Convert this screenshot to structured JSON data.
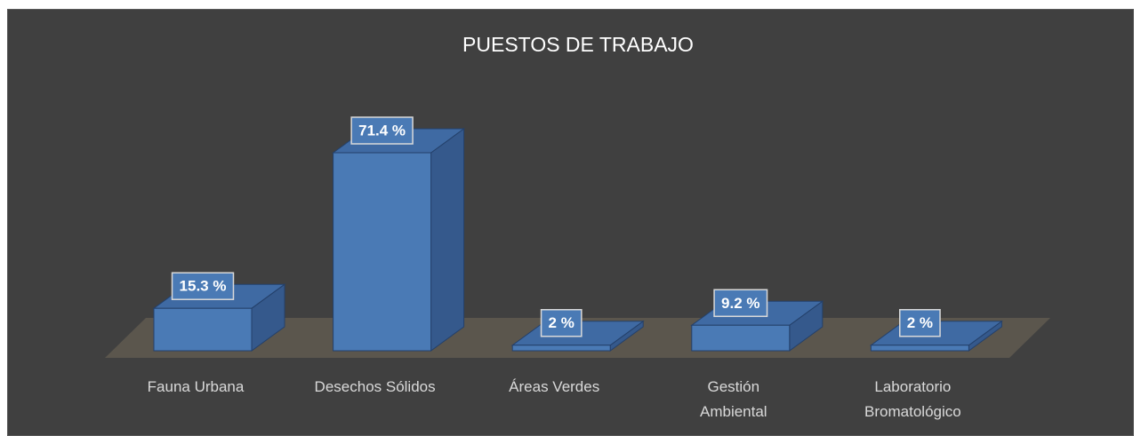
{
  "chart_data": {
    "type": "bar3d",
    "title": "PUESTOS DE TRABAJO",
    "categories": [
      "Fauna Urbana",
      "Desechos Sólidos",
      "Áreas Verdes",
      "Gestión\nAmbiental",
      "Laboratorio\nBromatológico"
    ],
    "values": [
      15.3,
      71.4,
      2,
      9.2,
      2
    ],
    "value_labels": [
      "15.3 %",
      "71.4 %",
      "2 %",
      "9.2 %",
      "2 %"
    ],
    "color": "#4a7ab5"
  }
}
